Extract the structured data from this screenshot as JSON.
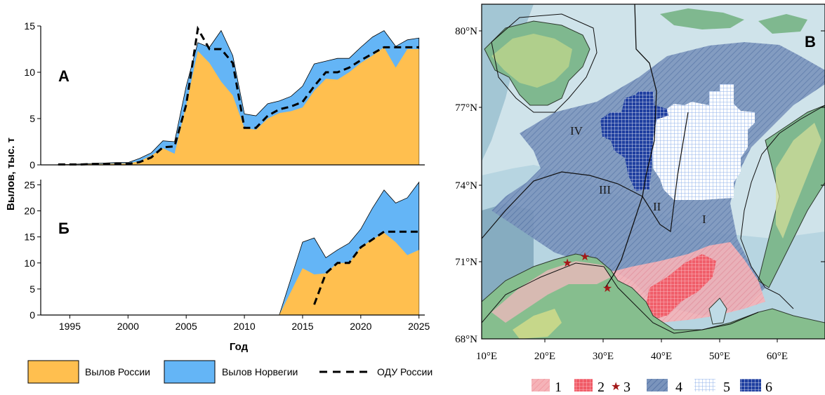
{
  "chart_data": [
    {
      "type": "area",
      "panel_label": "А",
      "ylabel": "Вылов, тыс. т",
      "xlim": [
        1992.5,
        2025.5
      ],
      "ylim": [
        0,
        15
      ],
      "yticks": [
        0,
        5,
        10,
        15
      ],
      "x": [
        1994,
        1995,
        1996,
        1997,
        1998,
        1999,
        2000,
        2001,
        2002,
        2003,
        2004,
        2005,
        2006,
        2007,
        2008,
        2009,
        2010,
        2011,
        2012,
        2013,
        2014,
        2015,
        2016,
        2017,
        2018,
        2019,
        2020,
        2021,
        2022,
        2023,
        2024,
        2025
      ],
      "series": [
        {
          "name": "Вылов России",
          "color": "#ffbf4f",
          "values": [
            0.05,
            0.05,
            0.05,
            0.1,
            0.1,
            0.15,
            0.15,
            0.4,
            1.0,
            1.8,
            1.2,
            6.5,
            12.3,
            11.0,
            9.0,
            7.5,
            4.0,
            3.8,
            5.0,
            5.6,
            5.8,
            6.2,
            8.0,
            9.3,
            9.2,
            10.0,
            11.0,
            11.8,
            12.7,
            10.5,
            12.5,
            12.5
          ]
        },
        {
          "name": "Вылов Норвегии",
          "color": "#64b5f6",
          "values": [
            0.05,
            0.05,
            0.1,
            0.15,
            0.2,
            0.25,
            0.25,
            0.7,
            1.3,
            2.6,
            2.5,
            8.5,
            13.2,
            12.7,
            14.5,
            11.8,
            5.5,
            5.3,
            6.6,
            6.9,
            7.4,
            8.5,
            10.9,
            11.2,
            11.5,
            11.5,
            12.7,
            13.8,
            14.5,
            12.8,
            13.5,
            13.7
          ]
        },
        {
          "name": "ОДУ России",
          "style": "dashed",
          "values": [
            0.05,
            0.05,
            0.05,
            0.1,
            0.1,
            0.1,
            0.1,
            0.3,
            0.8,
            1.9,
            2.0,
            6.5,
            14.7,
            12.5,
            12.5,
            11.0,
            4.0,
            4.0,
            5.3,
            6.0,
            6.3,
            6.8,
            8.5,
            10.0,
            10.0,
            10.5,
            11.3,
            12.0,
            12.7,
            12.7,
            12.7,
            12.7
          ]
        }
      ]
    },
    {
      "type": "area",
      "panel_label": "Б",
      "xlabel": "Год",
      "xlim": [
        1992.5,
        2025.5
      ],
      "ylim": [
        0,
        26
      ],
      "yticks": [
        0,
        5,
        10,
        15,
        20,
        25
      ],
      "xticks": [
        1995,
        2000,
        2005,
        2010,
        2015,
        2020,
        2025
      ],
      "x": [
        2013,
        2014,
        2015,
        2016,
        2017,
        2018,
        2019,
        2020,
        2021,
        2022,
        2023,
        2024,
        2025
      ],
      "series": [
        {
          "name": "Вылов России",
          "color": "#ffbf4f",
          "values": [
            0,
            4.5,
            9.0,
            7.8,
            8.0,
            10.0,
            10.0,
            13.0,
            14.5,
            15.8,
            14.0,
            11.5,
            12.5
          ]
        },
        {
          "name": "Вылов Норвегии",
          "color": "#64b5f6",
          "values": [
            0,
            7.0,
            14.0,
            14.8,
            11.0,
            12.5,
            13.8,
            16.5,
            20.5,
            24.0,
            21.5,
            22.5,
            25.5
          ]
        },
        {
          "name": "ОДУ России",
          "style": "dashed",
          "x": [
            2016,
            2017,
            2018,
            2019,
            2020,
            2021,
            2022,
            2023,
            2024,
            2025
          ],
          "values": [
            2.0,
            8.0,
            10.0,
            10.0,
            13.0,
            14.5,
            16.0,
            16.0,
            16.0,
            16.0
          ]
        }
      ]
    }
  ],
  "legend": {
    "items": [
      {
        "label": "Вылов России",
        "color": "#ffbf4f",
        "kind": "patch"
      },
      {
        "label": "Вылов Норвегии",
        "color": "#64b5f6",
        "kind": "patch"
      },
      {
        "label": "ОДУ России",
        "kind": "dashed-line"
      }
    ]
  },
  "map": {
    "panel_label": "В",
    "lat_labels": [
      "80°N",
      "77°N",
      "74°N",
      "71°N",
      "68°N"
    ],
    "lon_labels": [
      "10°E",
      "20°E",
      "30°E",
      "40°E",
      "50°E",
      "60°E"
    ],
    "regions": [
      "I",
      "II",
      "III",
      "IV"
    ],
    "legend": [
      {
        "num": "1",
        "kind": "light-red"
      },
      {
        "num": "2",
        "kind": "red-grid"
      },
      {
        "num": "3",
        "kind": "star"
      },
      {
        "num": "4",
        "kind": "blue-hatch"
      },
      {
        "num": "5",
        "kind": "light-blue-grid"
      },
      {
        "num": "6",
        "kind": "dark-blue-grid"
      }
    ],
    "colors": {
      "sea_light": "#cfe3ea",
      "sea_mid": "#a9ccd8",
      "deep": "#7ea9bd",
      "land": "#77b08a",
      "zone_blue": "#5574a8",
      "zone_red": "#f07a82",
      "dark_blue": "#1a3a9c",
      "light_blue_grid": "#b9cdf2"
    }
  }
}
